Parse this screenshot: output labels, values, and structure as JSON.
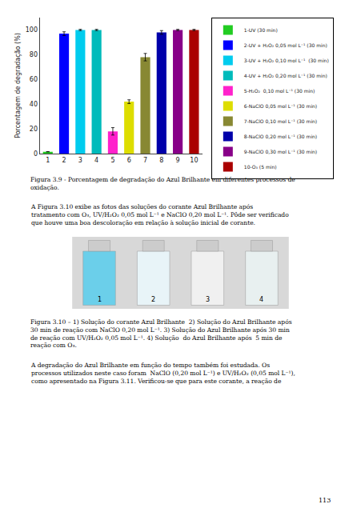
{
  "chart_data": {
    "type": "bar",
    "categories": [
      "1",
      "2",
      "3",
      "4",
      "5",
      "6",
      "7",
      "8",
      "9",
      "10"
    ],
    "values": [
      1.5,
      97,
      100,
      100,
      18,
      42,
      78,
      98,
      100,
      100
    ],
    "errors": [
      0,
      1.5,
      0.5,
      0.5,
      3,
      1.5,
      3,
      1.5,
      0.5,
      0.5
    ],
    "colors": [
      "#22cc22",
      "#0000ff",
      "#00ccee",
      "#00bbbb",
      "#ff22cc",
      "#dddd00",
      "#888833",
      "#0000aa",
      "#880088",
      "#aa0000"
    ],
    "ylabel": "Porcentagem de degradação (%)",
    "ylim": [
      0,
      110
    ],
    "yticks": [
      0,
      20,
      40,
      60,
      80,
      100
    ],
    "grid": false,
    "legend": "right",
    "legend_items": [
      "1-UV (30 min)",
      "2-UV + H₂O₂ 0,05 mol L⁻¹ (30 min)",
      "3-UV + H₂O₂ 0,10 mol L⁻¹  (30 min)",
      "4-UV + H₂O₂ 0,20 mol L⁻¹ (30 min)",
      "5-H₂O₂  0,10 mol L⁻¹ (30 min)",
      "6-NaClO 0,05 mol L⁻¹ (30 min)",
      "7-NaClO 0,10 mol L⁻¹ (30 min)",
      "8-NaClO 0,20 mol L⁻¹ (30 min)",
      "9-NaClO 0,30 mol L⁻¹ (30 min)",
      "10-O₃ (5 min)"
    ],
    "annotations": [
      "Figura 3.9 - Porcentagem de degradação do Azul Brilhante em diferentes processos de\noxidação.",
      "A Figura 3.10 exibe as fotos das soluções do corante Azul Brilhante após\ntratamento com O₃, UV/H₂O₂ 0,05 mol L⁻¹ e NaClO 0,20 mol L⁻¹. Pôde ser verificado\nque houve uma boa descoloração em relação à solução inicial de corante.",
      "Figura 3.10 – 1) Solução do corante Azul Brilhante  2) Solução do Azul Brilhante após\n30 min de reação com NaClO 0,20 mol L⁻¹. 3) Solução do Azul Brilhante após 30 min\nde reação com UV/H₂O₂ 0,05 mol L⁻¹. 4) Solução  do Azul Brilhante após  5 min de\nreação com O₃.",
      "A degradação do Azul Brilhante em função do tempo também foi estudada. Os\nprocessos utilizados neste caso foram  NaClO (0,20 mol L⁻¹) e UV/H₂O₂ (0,05 mol L⁻¹),\ncomo apresentado na Figura 3.11. Verificou-se que para este corante, a reação de",
      "113"
    ],
    "image_labels": [
      "1",
      "2",
      "3",
      "4"
    ]
  }
}
